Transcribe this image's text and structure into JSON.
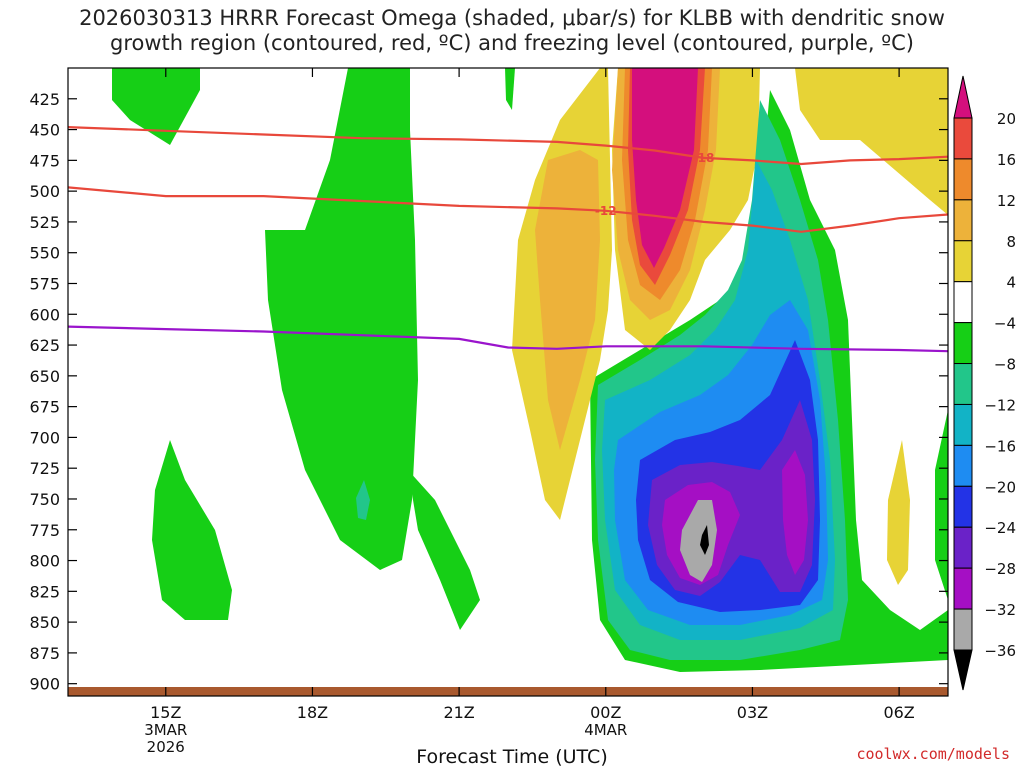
{
  "title": {
    "line1": "2026030313 HRRR Forecast Omega (shaded, μbar/s) for KLBB with dendritic snow",
    "line2": "growth region (contoured, red, ºC) and freezing level (contoured, purple, ºC)"
  },
  "credit": "coolwx.com/models",
  "chart_data": {
    "type": "heatmap",
    "xlabel": "Forecast Time (UTC)",
    "ylabel": "",
    "x_ticks": [
      {
        "label": "15Z",
        "sub1": "3MAR",
        "sub2": "2026",
        "hours": 15
      },
      {
        "label": "18Z",
        "sub1": "",
        "sub2": "",
        "hours": 18
      },
      {
        "label": "21Z",
        "sub1": "",
        "sub2": "",
        "hours": 21
      },
      {
        "label": "00Z",
        "sub1": "4MAR",
        "sub2": "",
        "hours": 24
      },
      {
        "label": "03Z",
        "sub1": "",
        "sub2": "",
        "hours": 27
      },
      {
        "label": "06Z",
        "sub1": "",
        "sub2": "",
        "hours": 30
      }
    ],
    "xlim_hours": [
      13,
      31
    ],
    "y_ticks": [
      425,
      450,
      475,
      500,
      525,
      550,
      575,
      600,
      625,
      650,
      675,
      700,
      725,
      750,
      775,
      800,
      825,
      850,
      875,
      900
    ],
    "ylim_hPa": [
      400,
      910
    ],
    "colorbar": {
      "labels": [
        "20",
        "16",
        "12",
        "8",
        "4",
        "−4",
        "−8",
        "−12",
        "−16",
        "−20",
        "−24",
        "−28",
        "−32",
        "−36"
      ],
      "colors": [
        "#d40f7d",
        "#ea4a3c",
        "#ee8a2c",
        "#edb23a",
        "#e7d336",
        "#ffffff",
        "#16cf16",
        "#22c68a",
        "#12b3c6",
        "#1e8cf2",
        "#2333e6",
        "#6a22c8",
        "#a50fc4",
        "#a9a9a9",
        "#000000"
      ]
    },
    "contours": [
      {
        "type": "isotherm",
        "label": "-18",
        "color": "#e8483b",
        "points": [
          [
            13,
            448
          ],
          [
            15,
            451
          ],
          [
            17,
            454
          ],
          [
            19,
            457
          ],
          [
            21,
            458
          ],
          [
            23,
            460
          ],
          [
            24,
            463
          ],
          [
            25,
            467
          ],
          [
            26,
            473
          ],
          [
            27,
            475
          ],
          [
            28,
            478
          ],
          [
            29,
            475
          ],
          [
            30,
            474
          ],
          [
            31,
            472
          ]
        ]
      },
      {
        "type": "isotherm",
        "label": "-12",
        "color": "#e8483b",
        "points": [
          [
            13,
            497
          ],
          [
            15,
            504
          ],
          [
            17,
            504
          ],
          [
            19,
            508
          ],
          [
            21,
            512
          ],
          [
            23,
            514
          ],
          [
            24,
            516
          ],
          [
            25,
            520
          ],
          [
            26,
            525
          ],
          [
            27,
            528
          ],
          [
            28,
            533
          ],
          [
            29,
            528
          ],
          [
            30,
            522
          ],
          [
            31,
            519
          ]
        ]
      },
      {
        "type": "freezing",
        "label": "",
        "color": "#9a14cc",
        "points": [
          [
            13,
            610
          ],
          [
            15,
            612
          ],
          [
            17,
            614
          ],
          [
            19,
            617
          ],
          [
            21,
            620
          ],
          [
            22,
            627
          ],
          [
            23,
            628
          ],
          [
            24,
            626
          ],
          [
            26,
            626
          ],
          [
            28,
            628
          ],
          [
            30,
            629
          ],
          [
            31,
            630
          ]
        ]
      }
    ],
    "surface_band_color": "#a9592e"
  }
}
